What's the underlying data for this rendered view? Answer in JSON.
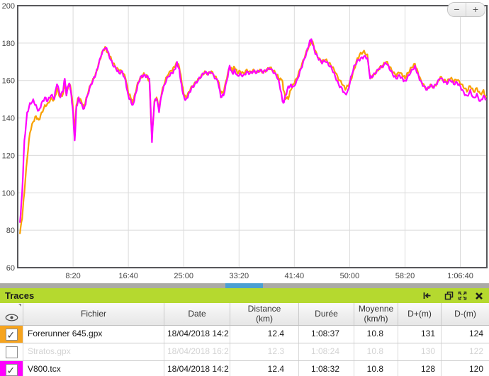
{
  "chart": {
    "zoom_out_label": "−",
    "zoom_in_label": "+",
    "frame_color": "#57575a",
    "grid_color": "#dadada",
    "tick_label_color": "#444444"
  },
  "chart_data": {
    "type": "line",
    "title": "",
    "xlabel": "",
    "ylabel": "",
    "ylim": [
      60,
      200
    ],
    "xlim_seconds": [
      0,
      4240
    ],
    "grid": true,
    "legend": "none",
    "y_ticks": [
      60,
      80,
      100,
      120,
      140,
      160,
      180,
      200
    ],
    "x_ticks": [
      {
        "seconds": 500,
        "label": "8:20"
      },
      {
        "seconds": 1000,
        "label": "16:40"
      },
      {
        "seconds": 1500,
        "label": "25:00"
      },
      {
        "seconds": 2000,
        "label": "33:20"
      },
      {
        "seconds": 2500,
        "label": "41:40"
      },
      {
        "seconds": 3000,
        "label": "50:00"
      },
      {
        "seconds": 3500,
        "label": "58:20"
      },
      {
        "seconds": 4000,
        "label": "1:06:40"
      }
    ],
    "x_seconds": [
      20,
      40,
      60,
      85,
      110,
      140,
      165,
      190,
      215,
      245,
      270,
      300,
      330,
      355,
      385,
      410,
      425,
      440,
      455,
      470,
      485,
      500,
      515,
      530,
      550,
      575,
      600,
      620,
      650,
      680,
      705,
      730,
      760,
      790,
      810,
      830,
      860,
      890,
      915,
      945,
      975,
      1000,
      1020,
      1040,
      1060,
      1085,
      1110,
      1140,
      1165,
      1190,
      1213,
      1235,
      1255,
      1277,
      1300,
      1330,
      1360,
      1395,
      1420,
      1440,
      1460,
      1480,
      1500,
      1520,
      1545,
      1570,
      1600,
      1630,
      1660,
      1690,
      1720,
      1750,
      1780,
      1810,
      1835,
      1860,
      1890,
      1915,
      1940,
      1960,
      1985,
      2010,
      2040,
      2070,
      2100,
      2130,
      2160,
      2190,
      2220,
      2250,
      2280,
      2310,
      2340,
      2365,
      2390,
      2400,
      2420,
      2445,
      2470,
      2490,
      2520,
      2550,
      2580,
      2610,
      2635,
      2650,
      2665,
      2690,
      2720,
      2750,
      2780,
      2810,
      2840,
      2870,
      2900,
      2930,
      2960,
      2985,
      3010,
      3040,
      3070,
      3100,
      3130,
      3160,
      3185,
      3210,
      3240,
      3270,
      3300,
      3330,
      3360,
      3390,
      3420,
      3450,
      3480,
      3500,
      3530,
      3560,
      3590,
      3615,
      3640,
      3670,
      3700,
      3730,
      3760,
      3790,
      3820,
      3850,
      3880,
      3910,
      3940,
      3970,
      4000,
      4030,
      4060,
      4090,
      4120,
      4150,
      4180,
      4210,
      4235
    ],
    "series": [
      {
        "name": "Forerunner 645.gpx",
        "color": "#f8a102",
        "values": [
          78,
          86,
          100,
          118,
          132,
          138,
          141,
          139,
          143,
          147,
          148,
          151,
          150,
          156,
          151,
          153,
          158,
          152,
          156,
          158,
          153,
          145,
          132,
          147,
          151,
          149,
          146,
          151,
          157,
          161,
          164,
          169,
          175,
          178,
          175,
          173,
          169,
          166,
          165,
          164,
          161,
          153,
          151,
          148,
          153,
          159,
          162,
          164,
          163,
          160,
          130,
          149,
          151,
          145,
          153,
          159,
          163,
          165,
          167,
          169,
          167,
          160,
          153,
          151,
          154,
          157,
          159,
          161,
          163,
          165,
          164,
          165,
          162,
          160,
          153,
          153,
          161,
          167,
          165,
          167,
          164,
          165,
          164,
          166,
          165,
          166,
          165,
          166,
          165,
          166,
          167,
          165,
          163,
          160,
          160,
          155,
          150,
          150,
          155,
          158,
          161,
          166,
          171,
          176,
          179,
          181,
          181,
          176,
          172,
          170,
          171,
          169,
          167,
          164,
          160,
          158,
          155,
          157,
          160,
          166,
          172,
          175,
          176,
          174,
          162,
          163,
          165,
          167,
          168,
          170,
          167,
          164,
          162,
          164,
          162,
          161,
          164,
          167,
          169,
          165,
          161,
          158,
          156,
          158,
          157,
          159,
          162,
          160,
          159,
          161,
          159,
          160,
          158,
          156,
          154,
          157,
          154,
          156,
          153,
          155,
          151
        ]
      },
      {
        "name": "V800.tcx",
        "color": "#fe00fe",
        "values": [
          84,
          100,
          128,
          143,
          148,
          150,
          147,
          144,
          148,
          151,
          149,
          152,
          150,
          158,
          151,
          154,
          161,
          152,
          157,
          158,
          152,
          143,
          128,
          146,
          151,
          148,
          145,
          150,
          156,
          160,
          163,
          168,
          174,
          177,
          176,
          172,
          168,
          166,
          164,
          165,
          160,
          152,
          150,
          147,
          152,
          158,
          162,
          163,
          162,
          161,
          127,
          148,
          150,
          143,
          152,
          158,
          162,
          164,
          166,
          170,
          166,
          158,
          152,
          150,
          153,
          156,
          158,
          160,
          162,
          164,
          163,
          164,
          161,
          159,
          151,
          152,
          160,
          168,
          164,
          166,
          163,
          164,
          163,
          165,
          164,
          165,
          164,
          165,
          164,
          165,
          166,
          164,
          162,
          158,
          150,
          148,
          152,
          157,
          158,
          157,
          160,
          165,
          170,
          175,
          180,
          182,
          179,
          174,
          171,
          169,
          170,
          168,
          166,
          162,
          158,
          156,
          153,
          155,
          162,
          168,
          171,
          172,
          173,
          172,
          161,
          162,
          164,
          166,
          167,
          169,
          166,
          163,
          161,
          163,
          161,
          160,
          163,
          166,
          168,
          164,
          160,
          157,
          155,
          157,
          156,
          158,
          161,
          159,
          158,
          160,
          158,
          159,
          157,
          154,
          152,
          155,
          151,
          153,
          149,
          152,
          150
        ]
      }
    ]
  },
  "scrollbar": {
    "track_color": "#abaaa6",
    "thumb_color": "#4b9fd2"
  },
  "panel": {
    "title": "Traces",
    "header_color": "#b5d92f",
    "icons": [
      "move-first-icon",
      "restore-window-icon",
      "fullscreen-icon",
      "close-icon"
    ]
  },
  "table": {
    "headers": {
      "fichier": "Fichier",
      "date": "Date",
      "distance": "Distance\n(km)",
      "duree": "Durée",
      "moyenne": "Moyenne\n(km/h)",
      "dplus": "D+(m)",
      "dminus": "D-(m)"
    },
    "rows": [
      {
        "checked": true,
        "disabled": false,
        "trace_color": "#f6a41f",
        "fichier": "Forerunner 645.gpx",
        "date": "18/04/2018 14:2",
        "distance": "12.4",
        "duree": "1:08:37",
        "moyenne": "10.8",
        "dplus": "131",
        "dminus": "124"
      },
      {
        "checked": false,
        "disabled": true,
        "trace_color": "#ffffff",
        "fichier": "Stratos.gpx",
        "date": "18/04/2018 16:2",
        "distance": "12.3",
        "duree": "1:08:24",
        "moyenne": "10.8",
        "dplus": "130",
        "dminus": "122"
      },
      {
        "checked": true,
        "disabled": false,
        "trace_color": "#ff00ff",
        "fichier": "V800.tcx",
        "date": "18/04/2018 14:2",
        "distance": "12.4",
        "duree": "1:08:32",
        "moyenne": "10.8",
        "dplus": "128",
        "dminus": "120"
      }
    ]
  }
}
